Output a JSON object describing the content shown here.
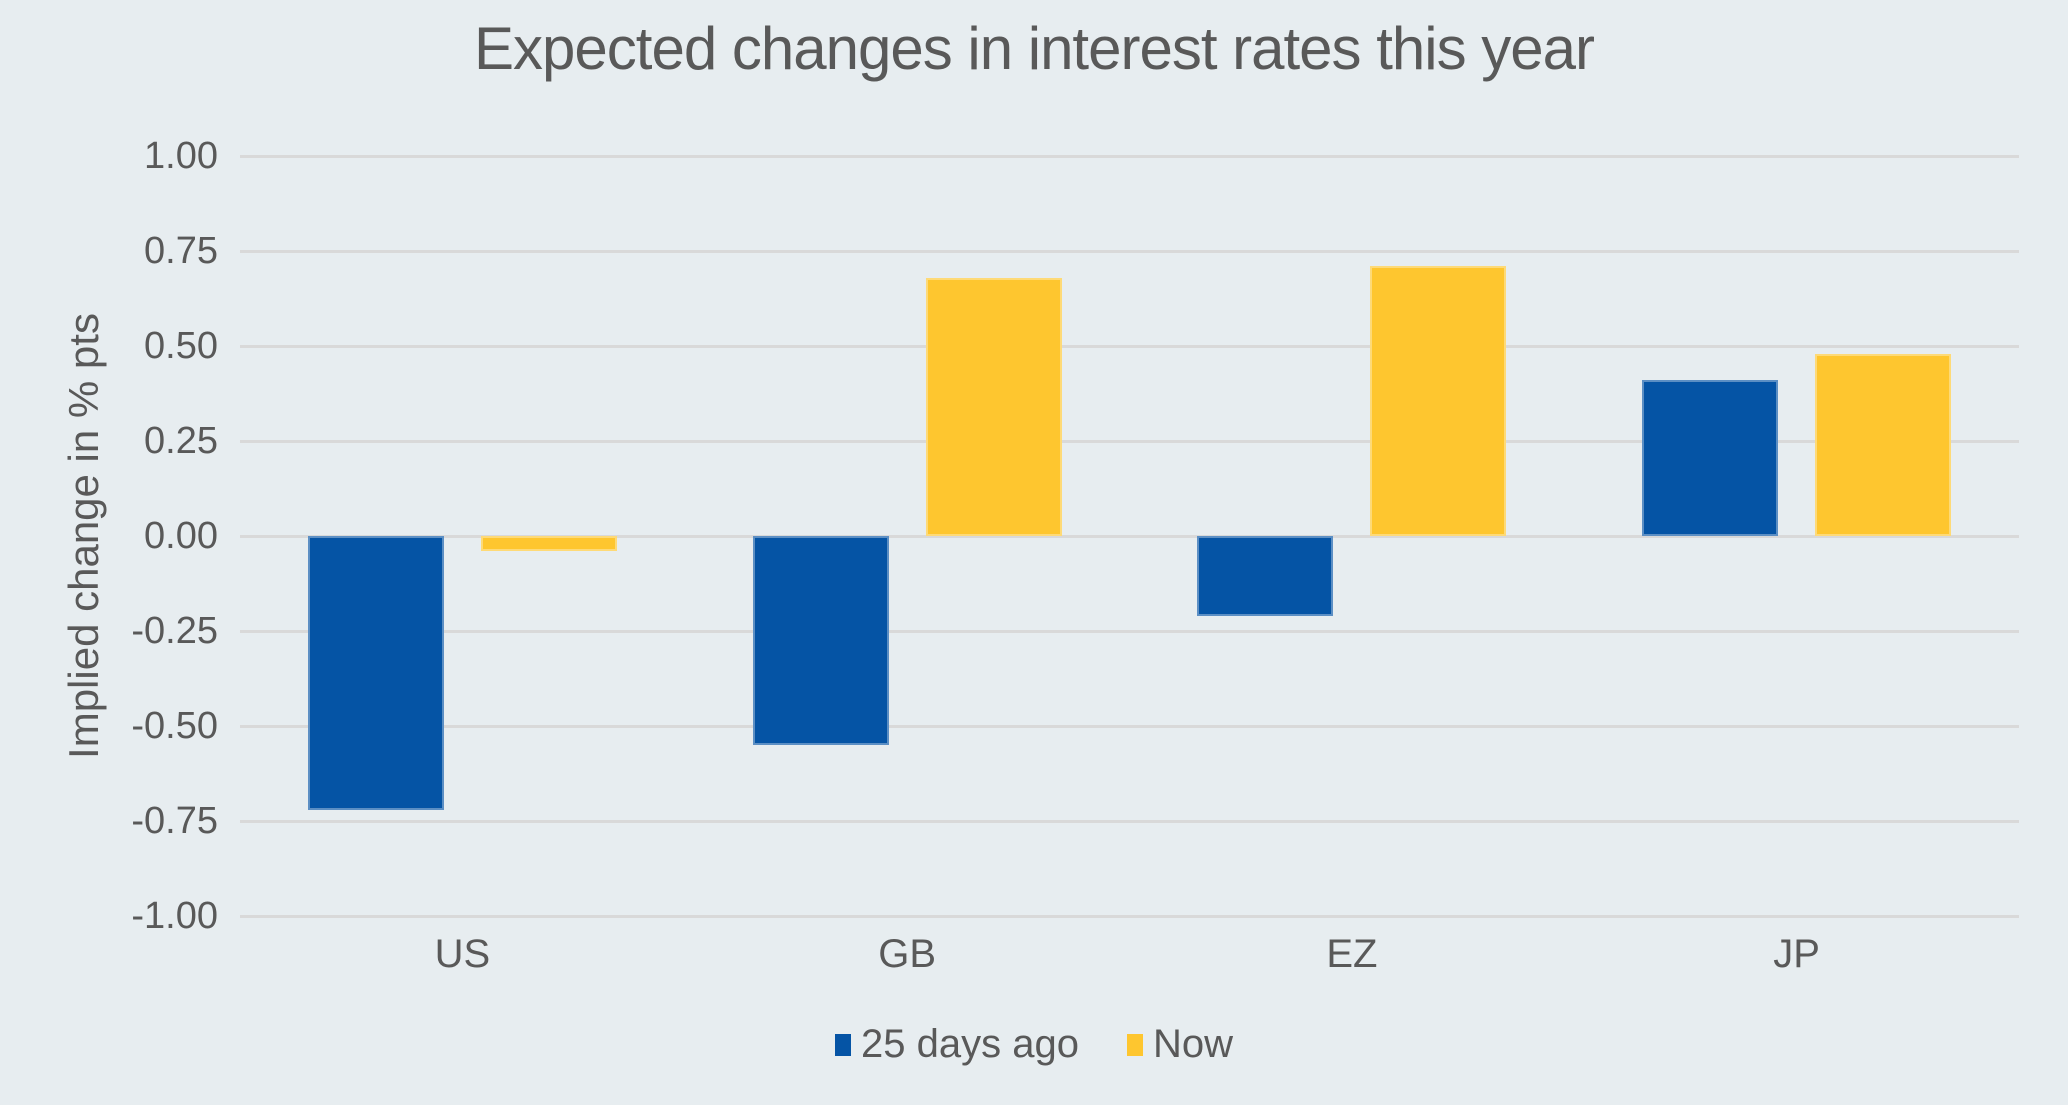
{
  "colors": {
    "background": "#e7edf0",
    "gridline": "#d9d9d9",
    "text": "#595959",
    "series_blue": "#0554a5",
    "series_yellow": "#fec62f"
  },
  "chart_data": {
    "type": "bar",
    "title": "Expected changes in interest rates this year",
    "ylabel": "Implied change in % pts",
    "xlabel": "",
    "categories": [
      "US",
      "GB",
      "EZ",
      "JP"
    ],
    "series": [
      {
        "name": "25 days ago",
        "color": "#0554a5",
        "values": [
          -0.72,
          -0.55,
          -0.21,
          0.41
        ]
      },
      {
        "name": "Now",
        "color": "#fec62f",
        "values": [
          -0.04,
          0.68,
          0.71,
          0.48
        ]
      }
    ],
    "ylim": [
      -1.0,
      1.0
    ],
    "ytick_step": 0.25,
    "ytick_labels": [
      "1.00",
      "0.75",
      "0.50",
      "0.25",
      "0.00",
      "-0.25",
      "-0.50",
      "-0.75",
      "-1.00"
    ],
    "grid": "horizontal",
    "legend_position": "bottom"
  }
}
